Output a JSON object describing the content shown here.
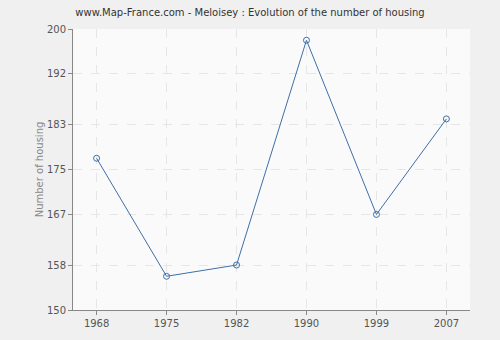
{
  "chart_data": {
    "type": "line",
    "title": "www.Map-France.com - Meloisey : Evolution of the number of housing",
    "y_label": "Number of housing",
    "categories": [
      "1968",
      "1975",
      "1982",
      "1990",
      "1999",
      "2007"
    ],
    "values": [
      177,
      156,
      158,
      198,
      167,
      184
    ],
    "color": "#3e6fa8",
    "marker": "circle-open",
    "ylim": [
      150,
      200
    ],
    "yticks": [
      150,
      158,
      167,
      175,
      183,
      192,
      200
    ],
    "grid": true
  }
}
